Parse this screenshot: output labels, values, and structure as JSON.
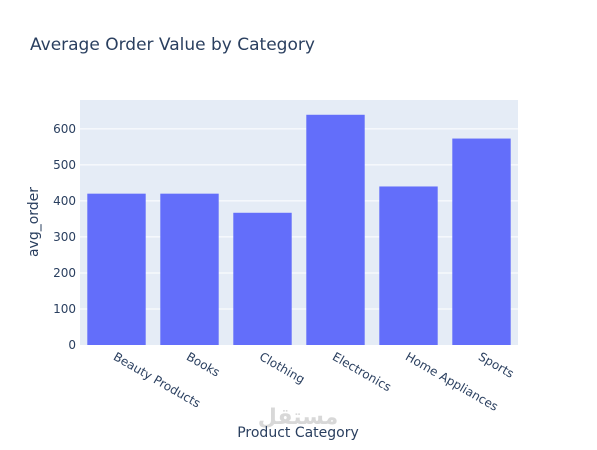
{
  "chart_data": {
    "type": "bar",
    "title": "Average Order Value by Category",
    "xlabel": "Product Category",
    "ylabel": "avg_order",
    "categories": [
      "Beauty Products",
      "Books",
      "Clothing",
      "Electronics",
      "Home Appliances",
      "Sports"
    ],
    "values": [
      420,
      420,
      367,
      639,
      440,
      573
    ],
    "ylim": [
      0,
      680
    ],
    "yticks": [
      0,
      100,
      200,
      300,
      400,
      500,
      600
    ],
    "grid": true,
    "bar_color": "#636efa",
    "plot_bg": "#e5ecf6"
  },
  "watermark": "مستقل"
}
